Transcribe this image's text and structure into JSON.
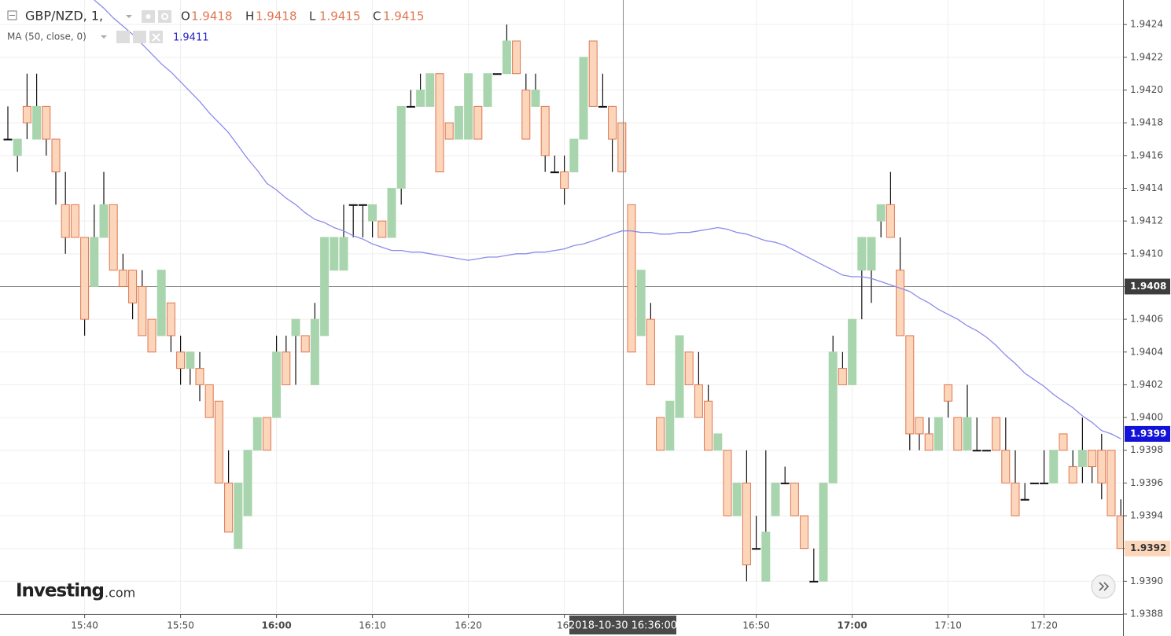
{
  "chart_data": {
    "type": "candlestick",
    "symbol": "GBP/NZD, 1,",
    "ohlc_legend": [
      {
        "label": "O",
        "value": 1.9418
      },
      {
        "label": "H",
        "value": 1.9418
      },
      {
        "label": "L",
        "value": 1.9415
      },
      {
        "label": "C",
        "value": 1.9415
      }
    ],
    "categories": [
      null,
      null,
      null,
      null,
      null,
      null,
      null,
      null,
      "15:40",
      null,
      null,
      null,
      null,
      null,
      null,
      null,
      null,
      null,
      "15:50",
      null,
      null,
      null,
      null,
      null,
      null,
      null,
      null,
      null,
      "16:00",
      null,
      null,
      null,
      null,
      null,
      null,
      null,
      null,
      null,
      "16:10",
      null,
      null,
      null,
      null,
      null,
      null,
      null,
      null,
      null,
      "16:20",
      null,
      null,
      null,
      null,
      null,
      null,
      null,
      null,
      null,
      "16:",
      null,
      null,
      null,
      null,
      null,
      null,
      null,
      null,
      null,
      null,
      null,
      null,
      null,
      null,
      null,
      null,
      null,
      null,
      null,
      "16:50",
      null,
      null,
      null,
      null,
      null,
      null,
      null,
      null,
      null,
      "17:00",
      null,
      null,
      null,
      null,
      null,
      null,
      null,
      null,
      null,
      "17:10",
      null,
      null,
      null,
      null,
      null,
      null,
      null,
      null,
      null,
      "17:20",
      null,
      null,
      null,
      null,
      null,
      null,
      null,
      null
    ],
    "open": [
      1.9417,
      1.9416,
      1.9419,
      1.9417,
      1.9419,
      1.9417,
      1.9413,
      1.9413,
      1.9411,
      1.9408,
      1.9411,
      1.9413,
      1.9409,
      1.9409,
      1.9408,
      1.9406,
      1.9405,
      1.9407,
      1.9404,
      1.9403,
      1.9403,
      1.9402,
      1.9401,
      1.9396,
      1.9392,
      1.9394,
      1.9398,
      1.94,
      1.94,
      1.9404,
      1.9405,
      1.9405,
      1.9402,
      1.9405,
      1.9409,
      1.9409,
      1.9413,
      1.9413,
      1.9412,
      1.9412,
      1.9411,
      1.9414,
      1.9419,
      1.9419,
      1.9419,
      1.9421,
      1.9418,
      1.9417,
      1.9417,
      1.9419,
      1.9419,
      1.9421,
      1.9421,
      1.9423,
      1.942,
      1.9419,
      1.9419,
      1.9415,
      1.9415,
      1.9415,
      1.9417,
      1.9423,
      1.9419,
      1.9419,
      1.9418,
      1.9413,
      1.9405,
      1.9406,
      1.94,
      1.9398,
      1.94,
      1.9404,
      1.9402,
      1.9401,
      1.9398,
      1.9398,
      1.9394,
      1.9396,
      1.9392,
      1.939,
      1.9394,
      1.9396,
      1.9396,
      1.9394,
      1.939,
      1.939,
      1.9396,
      1.9403,
      1.9402,
      1.9409,
      1.9409,
      1.9412,
      1.9413,
      1.9409,
      1.9405,
      1.94,
      1.9399,
      1.9398,
      1.9402,
      1.94,
      1.9398,
      1.9398,
      1.9398,
      1.94,
      1.9398,
      1.9396,
      1.9395,
      1.9396,
      1.9396,
      1.9396,
      1.9399,
      1.9397,
      1.9397,
      1.9398,
      1.9398,
      1.9398,
      1.9394
    ],
    "high": [
      1.9419,
      1.9417,
      1.9421,
      1.9421,
      1.9419,
      1.9417,
      1.9415,
      1.9413,
      1.9411,
      1.9413,
      1.9415,
      1.9413,
      1.941,
      1.9409,
      1.9409,
      1.9406,
      1.9409,
      1.9407,
      1.9405,
      1.9404,
      1.9404,
      1.9402,
      1.9401,
      1.9398,
      1.9396,
      1.9398,
      1.94,
      1.94,
      1.9405,
      1.9405,
      1.9406,
      1.9405,
      1.9407,
      1.9411,
      1.9411,
      1.9413,
      1.9413,
      1.9413,
      1.9413,
      1.9412,
      1.9414,
      1.9419,
      1.942,
      1.9421,
      1.9421,
      1.9421,
      1.9418,
      1.9419,
      1.9421,
      1.9419,
      1.9421,
      1.9421,
      1.9424,
      1.9423,
      1.9421,
      1.9421,
      1.9419,
      1.9416,
      1.9416,
      1.9417,
      1.9422,
      1.9423,
      1.9421,
      1.9419,
      1.9418,
      1.9413,
      1.9409,
      1.9407,
      1.94,
      1.9401,
      1.9405,
      1.9404,
      1.9404,
      1.9402,
      1.9399,
      1.9398,
      1.9396,
      1.9398,
      1.9394,
      1.9398,
      1.9396,
      1.9397,
      1.9396,
      1.9394,
      1.9392,
      1.9396,
      1.9405,
      1.9404,
      1.9406,
      1.9411,
      1.9411,
      1.9413,
      1.9415,
      1.9411,
      1.9405,
      1.94,
      1.94,
      1.94,
      1.9402,
      1.94,
      1.9402,
      1.94,
      1.9398,
      1.94,
      1.94,
      1.9398,
      1.9396,
      1.9396,
      1.9398,
      1.9398,
      1.9399,
      1.9398,
      1.94,
      1.9398,
      1.9399,
      1.9398,
      1.9395
    ],
    "low": [
      1.9417,
      1.9415,
      1.9417,
      1.9417,
      1.9416,
      1.9413,
      1.941,
      1.9411,
      1.9405,
      1.9408,
      1.9411,
      1.9409,
      1.9408,
      1.9406,
      1.9405,
      1.9404,
      1.9405,
      1.9404,
      1.9402,
      1.9402,
      1.9401,
      1.94,
      1.9396,
      1.9393,
      1.9392,
      1.9394,
      1.9398,
      1.9398,
      1.94,
      1.9402,
      1.9402,
      1.9404,
      1.9402,
      1.9405,
      1.9409,
      1.9409,
      1.9411,
      1.9411,
      1.9411,
      1.9411,
      1.9411,
      1.9413,
      1.9419,
      1.9419,
      1.9419,
      1.9415,
      1.9417,
      1.9417,
      1.9417,
      1.9417,
      1.9419,
      1.9421,
      1.9421,
      1.9421,
      1.9417,
      1.9419,
      1.9415,
      1.9415,
      1.9413,
      1.9415,
      1.9417,
      1.9419,
      1.9419,
      1.9415,
      1.9415,
      1.9404,
      1.9405,
      1.9402,
      1.9398,
      1.9398,
      1.94,
      1.9402,
      1.94,
      1.9398,
      1.9398,
      1.9394,
      1.9394,
      1.939,
      1.9392,
      1.939,
      1.9394,
      1.9396,
      1.9394,
      1.9392,
      1.939,
      1.939,
      1.9396,
      1.9402,
      1.9402,
      1.9406,
      1.9407,
      1.9411,
      1.9411,
      1.9405,
      1.9398,
      1.9398,
      1.9398,
      1.9398,
      1.94,
      1.9398,
      1.9398,
      1.9398,
      1.9398,
      1.9398,
      1.9396,
      1.9394,
      1.9395,
      1.9396,
      1.9396,
      1.9396,
      1.9398,
      1.9396,
      1.9396,
      1.9396,
      1.9395,
      1.9394,
      1.9392
    ],
    "close": [
      1.9417,
      1.9417,
      1.9418,
      1.9419,
      1.9417,
      1.9415,
      1.9411,
      1.9411,
      1.9406,
      1.9411,
      1.9413,
      1.9409,
      1.9408,
      1.9407,
      1.9405,
      1.9404,
      1.9409,
      1.9405,
      1.9403,
      1.9404,
      1.9402,
      1.94,
      1.9396,
      1.9393,
      1.9396,
      1.9398,
      1.94,
      1.9398,
      1.9404,
      1.9402,
      1.9406,
      1.9404,
      1.9406,
      1.9411,
      1.9411,
      1.9411,
      1.9413,
      1.9413,
      1.9413,
      1.9411,
      1.9414,
      1.9419,
      1.9419,
      1.942,
      1.9421,
      1.9415,
      1.9417,
      1.9419,
      1.9421,
      1.9417,
      1.9421,
      1.9421,
      1.9423,
      1.9421,
      1.9417,
      1.942,
      1.9416,
      1.9415,
      1.9414,
      1.9417,
      1.9422,
      1.9419,
      1.9419,
      1.9417,
      1.9415,
      1.9404,
      1.9409,
      1.9402,
      1.9398,
      1.9401,
      1.9405,
      1.9402,
      1.94,
      1.9398,
      1.9399,
      1.9394,
      1.9396,
      1.9391,
      1.9392,
      1.9393,
      1.9396,
      1.9396,
      1.9394,
      1.9392,
      1.939,
      1.9396,
      1.9404,
      1.9402,
      1.9406,
      1.9411,
      1.9411,
      1.9413,
      1.9411,
      1.9405,
      1.9399,
      1.9399,
      1.9398,
      1.94,
      1.9401,
      1.9398,
      1.94,
      1.9398,
      1.9398,
      1.9398,
      1.9396,
      1.9394,
      1.9395,
      1.9396,
      1.9396,
      1.9398,
      1.9398,
      1.9396,
      1.9398,
      1.9397,
      1.9396,
      1.9394,
      1.9392
    ],
    "up_color": "#a8d5ad",
    "down_color": "#fbd6bb",
    "down_border": "#e07650",
    "wick_color": "#111111",
    "ma": {
      "name": "MA (50, close, 0)",
      "legend_value": 1.9411,
      "color": "#8b8bec",
      "values": [
        null,
        null,
        null,
        null,
        null,
        null,
        null,
        null,
        null,
        1.94255,
        1.9425,
        1.94244,
        1.94239,
        1.94234,
        1.94228,
        1.94222,
        1.94216,
        1.94211,
        1.94205,
        1.94199,
        1.94193,
        1.94186,
        1.9418,
        1.94174,
        1.94166,
        1.94158,
        1.94151,
        1.94143,
        1.94139,
        1.94134,
        1.9413,
        1.94125,
        1.94121,
        1.94119,
        1.94116,
        1.94114,
        1.94111,
        1.94109,
        1.94106,
        1.94104,
        1.94102,
        1.94102,
        1.94101,
        1.94101,
        1.941,
        1.94099,
        1.94098,
        1.94097,
        1.94096,
        1.94097,
        1.94098,
        1.94098,
        1.94099,
        1.941,
        1.941,
        1.94101,
        1.94101,
        1.94102,
        1.94103,
        1.94105,
        1.94106,
        1.94108,
        1.9411,
        1.94112,
        1.94114,
        1.94114,
        1.94113,
        1.94113,
        1.94112,
        1.94112,
        1.94113,
        1.94113,
        1.94114,
        1.94115,
        1.94116,
        1.94115,
        1.94113,
        1.94112,
        1.9411,
        1.94108,
        1.94107,
        1.94105,
        1.94102,
        1.94099,
        1.94096,
        1.94093,
        1.9409,
        1.94087,
        1.94086,
        1.94086,
        1.94085,
        1.94083,
        1.94081,
        1.94079,
        1.94077,
        1.94073,
        1.9407,
        1.94066,
        1.94063,
        1.9406,
        1.94056,
        1.94053,
        1.94049,
        1.94044,
        1.94038,
        1.94033,
        1.94027,
        1.94023,
        1.94019,
        1.94014,
        1.9401,
        1.94006,
        1.94001,
        1.93997,
        1.93992,
        1.9399,
        1.93987
      ]
    },
    "ylim": [
      1.9388,
      1.94255
    ],
    "yticks": [
      1.9388,
      {
        "value": 1.939,
        "label": "1.9390"
      },
      1.9392,
      1.9394,
      1.9396,
      1.9398,
      {
        "value": 1.94,
        "label": "1.9400"
      },
      1.9402,
      1.9404,
      1.9406,
      1.9408,
      {
        "value": 1.941,
        "label": "1.9410"
      },
      1.9412,
      1.9414,
      1.9416,
      1.9418,
      {
        "value": 1.942,
        "label": "1.9420"
      },
      1.9422,
      1.9424
    ],
    "grid": true,
    "crosshair_price": 1.9408,
    "crosshair_time": "2018-10-30 16:36:00",
    "ma_last_price": 1.9399,
    "last_price": 1.9392,
    "logo": "Investing",
    "logo_suffix": ".com"
  }
}
